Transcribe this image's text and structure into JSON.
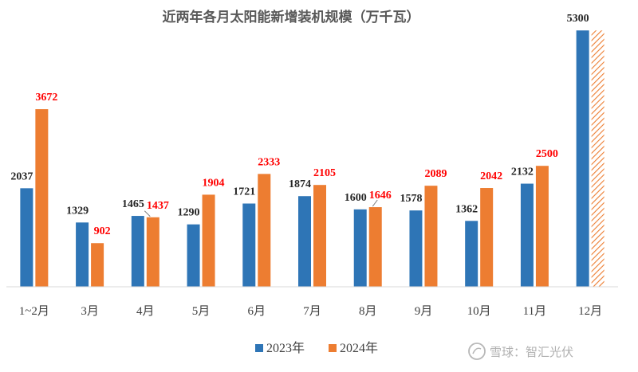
{
  "chart_data": {
    "type": "bar",
    "title": "近两年各月太阳能新增装机规模（万千瓦）",
    "categories": [
      "1~2月",
      "3月",
      "4月",
      "5月",
      "6月",
      "7月",
      "8月",
      "9月",
      "10月",
      "11月",
      "12月"
    ],
    "series": [
      {
        "name": "2023年",
        "color": "#2e75b6",
        "label_color": "#262626",
        "values": [
          2037,
          1329,
          1465,
          1290,
          1721,
          1874,
          1600,
          1578,
          1362,
          2132,
          5300
        ]
      },
      {
        "name": "2024年",
        "color": "#ed7d31",
        "label_color": "#ff0000",
        "values": [
          3672,
          902,
          1437,
          1904,
          2333,
          2105,
          1646,
          2089,
          2042,
          2500,
          null
        ]
      }
    ],
    "ylim": [
      0,
      5600
    ],
    "grid": false,
    "legend": "bottom-center",
    "pattern_note_category": "12月"
  },
  "watermark": {
    "text": "雪球：智汇光伏",
    "icon": "snowball-logo-icon"
  }
}
